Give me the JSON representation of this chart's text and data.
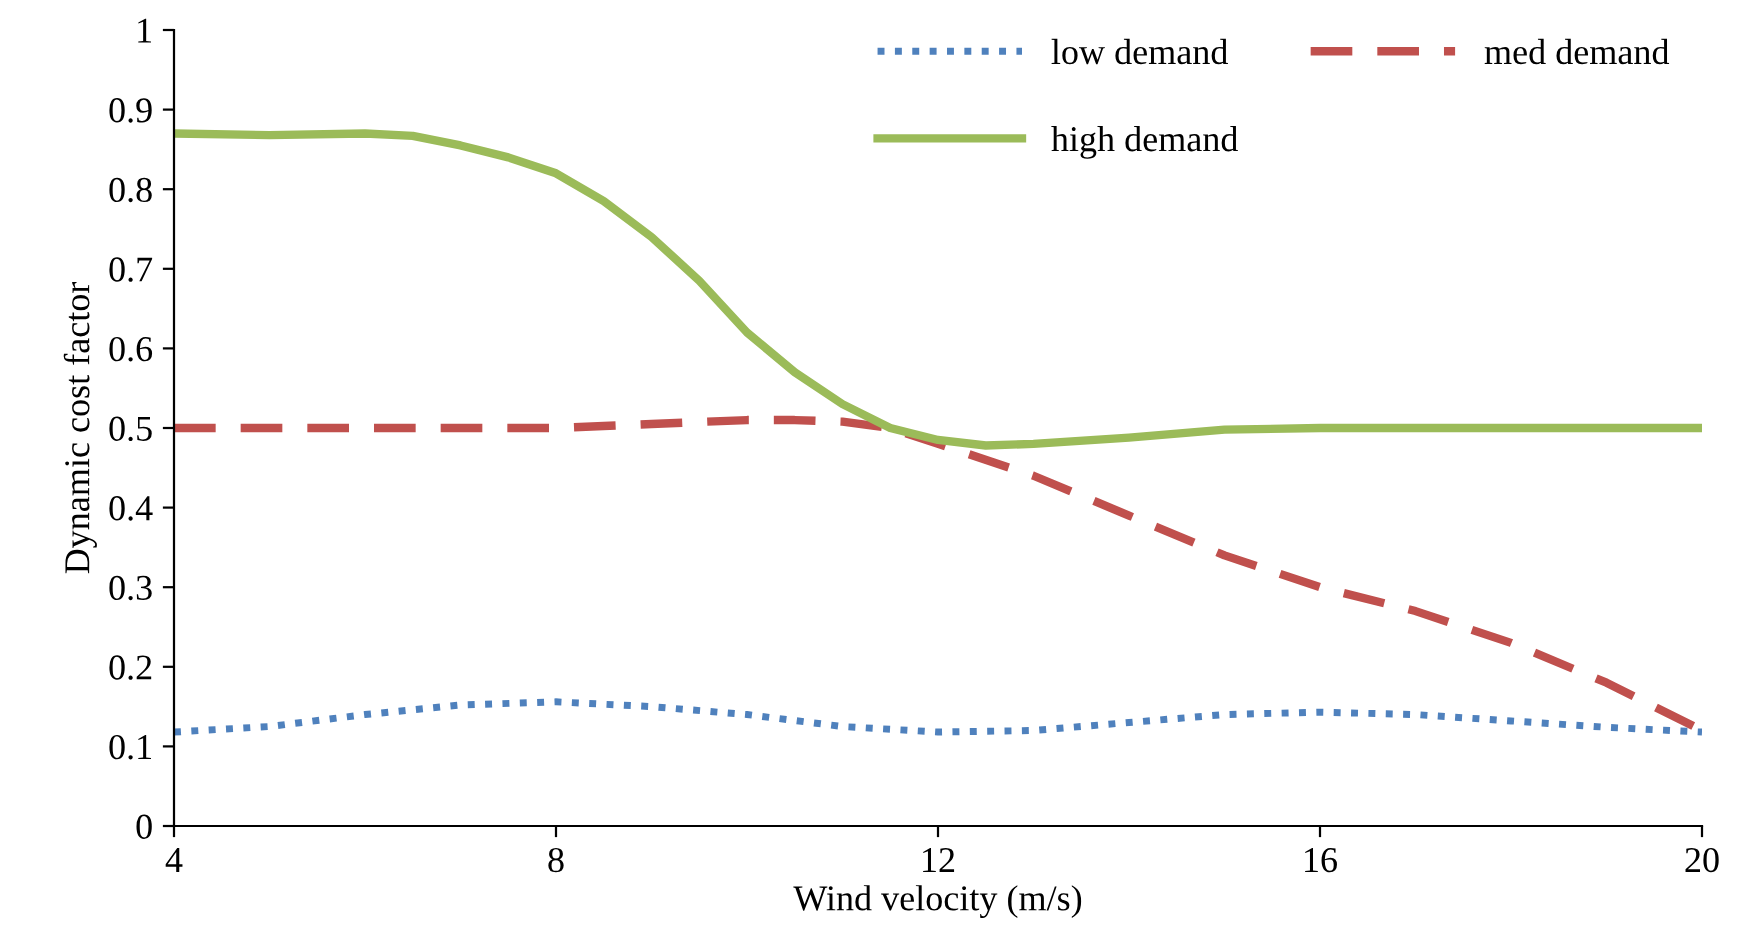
{
  "chart_data": {
    "type": "line",
    "xlabel": "Wind velocity (m/s)",
    "ylabel": "Dynamic cost factor",
    "xlim": [
      4,
      20
    ],
    "xticks": [
      4,
      8,
      12,
      16,
      20
    ],
    "ylim": [
      0,
      1
    ],
    "yticks": [
      0,
      0.1,
      0.2,
      0.3,
      0.4,
      0.5,
      0.6,
      0.7,
      0.8,
      0.9,
      1
    ],
    "grid": false,
    "legend": "top right",
    "marker": "none",
    "series": [
      {
        "name": "low demand",
        "color": "#4f81bd",
        "line_style": "dotted",
        "x": [
          4,
          5,
          6,
          7,
          8,
          9,
          10,
          11,
          12,
          13,
          14,
          15,
          16,
          17,
          18,
          19,
          20
        ],
        "values": [
          0.118,
          0.125,
          0.14,
          0.152,
          0.156,
          0.15,
          0.14,
          0.125,
          0.118,
          0.12,
          0.13,
          0.14,
          0.143,
          0.14,
          0.132,
          0.124,
          0.118
        ]
      },
      {
        "name": "med demand",
        "color": "#c0504d",
        "line_style": "dashed",
        "x": [
          4,
          5,
          6,
          7,
          8,
          9,
          10,
          10.5,
          11,
          11.5,
          12,
          13,
          14,
          15,
          16,
          17,
          18,
          19,
          20
        ],
        "values": [
          0.5,
          0.5,
          0.5,
          0.5,
          0.5,
          0.505,
          0.51,
          0.51,
          0.508,
          0.5,
          0.48,
          0.44,
          0.39,
          0.34,
          0.3,
          0.27,
          0.23,
          0.18,
          0.12
        ]
      },
      {
        "name": "high demand",
        "color": "#9bbb59",
        "line_style": "solid",
        "x": [
          4,
          5,
          6,
          6.5,
          7,
          7.5,
          8,
          8.5,
          9,
          9.5,
          10,
          10.5,
          11,
          11.5,
          12,
          12.5,
          13,
          14,
          15,
          16,
          17,
          18,
          19,
          20
        ],
        "values": [
          0.87,
          0.868,
          0.87,
          0.867,
          0.855,
          0.84,
          0.82,
          0.785,
          0.74,
          0.685,
          0.62,
          0.57,
          0.53,
          0.5,
          0.485,
          0.478,
          0.48,
          0.488,
          0.498,
          0.5,
          0.5,
          0.5,
          0.5,
          0.5
        ]
      }
    ]
  }
}
